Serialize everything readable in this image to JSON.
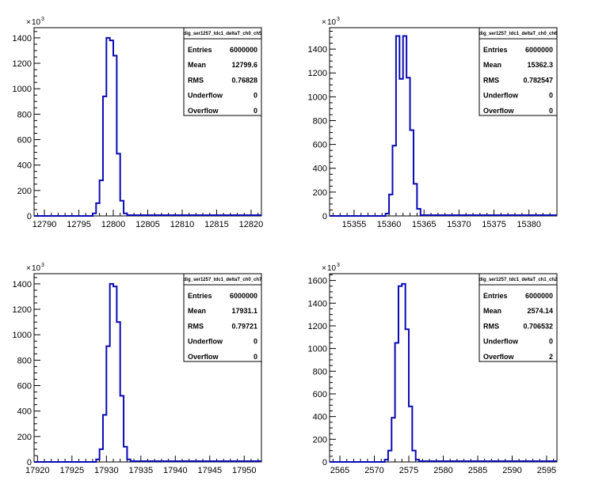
{
  "chart_data": [
    {
      "type": "bar",
      "hist_name": "dig_ser1257_tdc1_deltaT_ch0_ch5",
      "xlim": [
        12788.5,
        12821.5
      ],
      "xticks": [
        12790,
        12795,
        12800,
        12805,
        12810,
        12815,
        12820
      ],
      "ylim": [
        0,
        1480
      ],
      "yticks": [
        0,
        200,
        400,
        600,
        800,
        1000,
        1200,
        1400
      ],
      "y_exponent_base": "10",
      "y_exponent_power": "3",
      "bin_width": 0.5,
      "bins": [
        [
          12797,
          20
        ],
        [
          12797.5,
          100
        ],
        [
          12798,
          280
        ],
        [
          12798.5,
          940
        ],
        [
          12799,
          1400
        ],
        [
          12799.5,
          1380
        ],
        [
          12800,
          1260
        ],
        [
          12800.5,
          490
        ],
        [
          12801,
          120
        ],
        [
          12801.5,
          20
        ]
      ],
      "stats": [
        {
          "label": "Entries",
          "value": "6000000"
        },
        {
          "label": "Mean",
          "value": "12799.6"
        },
        {
          "label": "RMS",
          "value": "0.76828"
        },
        {
          "label": "Underflow",
          "value": "0"
        },
        {
          "label": "Overflow",
          "value": "0"
        }
      ],
      "line_color": "#0a0ab4"
    },
    {
      "type": "bar",
      "hist_name": "dig_ser1257_tdc1_deltaT_ch0_ch6",
      "xlim": [
        15351.5,
        15384.0
      ],
      "xticks": [
        15355,
        15360,
        15365,
        15370,
        15375,
        15380
      ],
      "ylim": [
        0,
        1580
      ],
      "yticks": [
        0,
        200,
        400,
        600,
        800,
        1000,
        1200,
        1400
      ],
      "y_exponent_base": "10",
      "y_exponent_power": "3",
      "bin_width": 0.5,
      "bins": [
        [
          15359.5,
          20
        ],
        [
          15360,
          180
        ],
        [
          15360.5,
          590
        ],
        [
          15361,
          1510
        ],
        [
          15361.5,
          1150
        ],
        [
          15362,
          1510
        ],
        [
          15362.5,
          1160
        ],
        [
          15363,
          720
        ],
        [
          15363.5,
          270
        ],
        [
          15364,
          60
        ]
      ],
      "stats": [
        {
          "label": "Entries",
          "value": "6000000"
        },
        {
          "label": "Mean",
          "value": "15362.3"
        },
        {
          "label": "RMS",
          "value": "0.782547"
        },
        {
          "label": "Underflow",
          "value": "0"
        },
        {
          "label": "Overflow",
          "value": "0"
        }
      ],
      "line_color": "#0a0ab4"
    },
    {
      "type": "bar",
      "hist_name": "dig_ser1257_tdc1_deltaT_ch0_ch7",
      "xlim": [
        17919.5,
        17952.5
      ],
      "xticks": [
        17920,
        17925,
        17930,
        17935,
        17940,
        17945,
        17950
      ],
      "ylim": [
        0,
        1480
      ],
      "yticks": [
        0,
        200,
        400,
        600,
        800,
        1000,
        1200,
        1400
      ],
      "y_exponent_base": "10",
      "y_exponent_power": "3",
      "bin_width": 0.5,
      "bins": [
        [
          17928.5,
          20
        ],
        [
          17929,
          100
        ],
        [
          17929.5,
          370
        ],
        [
          17930,
          910
        ],
        [
          17930.5,
          1400
        ],
        [
          17931,
          1380
        ],
        [
          17931.5,
          1100
        ],
        [
          17932,
          520
        ],
        [
          17932.5,
          120
        ],
        [
          17933,
          20
        ]
      ],
      "stats": [
        {
          "label": "Entries",
          "value": "6000000"
        },
        {
          "label": "Mean",
          "value": "17931.1"
        },
        {
          "label": "RMS",
          "value": "0.79721"
        },
        {
          "label": "Underflow",
          "value": "0"
        },
        {
          "label": "Overflow",
          "value": "0"
        }
      ],
      "line_color": "#0a0ab4"
    },
    {
      "type": "bar",
      "hist_name": "dig_ser1257_tdc1_deltaT_ch1_ch2",
      "xlim": [
        2563.5,
        2596.5
      ],
      "xticks": [
        2565,
        2570,
        2575,
        2580,
        2585,
        2590,
        2595
      ],
      "ylim": [
        0,
        1660
      ],
      "yticks": [
        0,
        200,
        400,
        600,
        800,
        1000,
        1200,
        1400,
        1600
      ],
      "y_exponent_base": "10",
      "y_exponent_power": "3",
      "bin_width": 0.5,
      "bins": [
        [
          2571.5,
          20
        ],
        [
          2572,
          100
        ],
        [
          2572.5,
          390
        ],
        [
          2573,
          1050
        ],
        [
          2573.5,
          1550
        ],
        [
          2574,
          1570
        ],
        [
          2574.5,
          1170
        ],
        [
          2575,
          490
        ],
        [
          2575.5,
          100
        ],
        [
          2576,
          20
        ]
      ],
      "stats": [
        {
          "label": "Entries",
          "value": "6000000"
        },
        {
          "label": "Mean",
          "value": "2574.14"
        },
        {
          "label": "RMS",
          "value": "0.706532"
        },
        {
          "label": "Underflow",
          "value": "0"
        },
        {
          "label": "Overflow",
          "value": "2"
        }
      ],
      "line_color": "#0a0ab4"
    }
  ]
}
